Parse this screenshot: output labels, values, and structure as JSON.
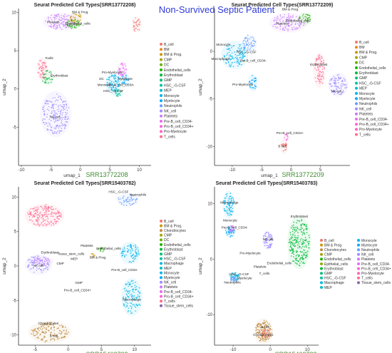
{
  "figure": {
    "suptitle": "Non-Survived Septic Patient",
    "suptitle_color": "#2f3bd6"
  },
  "colors": {
    "B_cell": "#f4766e",
    "BM": "#e58a1c",
    "BM & Prog.": "#c99800",
    "CMP": "#a3a500",
    "DC": "#6bb100",
    "Endothelial_cells": "#1eb600",
    "Erythroblast": "#00ba38",
    "GMP": "#00bf74",
    "HSC_-G-CSF": "#00c0a5",
    "MEP": "#00bfc4",
    "Monocyte": "#00b4f0",
    "Myelocyte": "#00a9ff",
    "Neutrophils": "#619cff",
    "NK_cell": "#9d8cff",
    "Platelets": "#c77cff",
    "Pre-B_cell_CD34-": "#e76bf3",
    "Pro-B_cell_CD34+": "#fa62db",
    "Pro-Myelocyte": "#ff61c3",
    "T_cells": "#ff6c91",
    "Chondrocytes": "#c08a3e",
    "Epithelial_cells": "#8fae00",
    "Macrophage": "#00b8e7",
    "Tissue_stem_cells": "#8b64a8"
  },
  "chart_data": [
    {
      "type": "scatter",
      "title": "Seurat Predicted Cell Types(SRR13772208)",
      "xlabel": "umap_1",
      "ylabel": "umap_2",
      "watermark": "SRR13772208",
      "xlim": [
        -10.5,
        12
      ],
      "ylim": [
        -10,
        10.5
      ],
      "xticks": [
        -10,
        -5,
        0,
        5,
        10
      ],
      "yticks": [
        -5,
        0,
        5,
        10
      ],
      "legend": [
        "B_cell",
        "BM",
        "BM & Prog.",
        "CMP",
        "DC",
        "Endothelial_cells",
        "Erythroblast",
        "GMP",
        "HSC_-G-CSF",
        "MEP",
        "Monocyte",
        "Myelocyte",
        "Neutrophils",
        "NK_cell",
        "Platelets",
        "Pre-B_cell_CD34-",
        "Pro-B_cell_CD34+",
        "Pro-Myelocyte",
        "T_cells"
      ],
      "clusters": [
        {
          "type": "Platelets",
          "cx": -3.2,
          "cy": 8.8,
          "rx": 2.8,
          "ry": 1.0,
          "n": 120
        },
        {
          "type": "BM & Prog.",
          "cx": -0.8,
          "cy": 9.2,
          "rx": 1.0,
          "ry": 0.7,
          "n": 30
        },
        {
          "type": "Endothelial_cells",
          "cx": -1.2,
          "cy": 8.5,
          "rx": 1.2,
          "ry": 0.6,
          "n": 35
        },
        {
          "type": "T_cells",
          "cx": -6.5,
          "cy": 2.6,
          "rx": 0.8,
          "ry": 1.3,
          "n": 50
        },
        {
          "type": "NK_cell",
          "cx": -4.2,
          "cy": -3.3,
          "rx": 2.3,
          "ry": 2.6,
          "n": 200
        },
        {
          "type": "Erythroblast",
          "cx": -5.6,
          "cy": 1.5,
          "rx": 0.9,
          "ry": 0.9,
          "n": 30
        },
        {
          "type": "B_cell",
          "cx": 9.6,
          "cy": 8.4,
          "rx": 0.7,
          "ry": 0.9,
          "n": 30
        },
        {
          "type": "Pre-B_cell_CD34-",
          "cx": 7.1,
          "cy": 2.4,
          "rx": 0.7,
          "ry": 1.0,
          "n": 40
        },
        {
          "type": "Monocyte",
          "cx": 5.6,
          "cy": 0.7,
          "rx": 1.2,
          "ry": 1.2,
          "n": 80
        },
        {
          "type": "HSC_-G-CSF",
          "cx": 6.3,
          "cy": -0.5,
          "rx": 0.8,
          "ry": 0.5,
          "n": 25
        },
        {
          "type": "Myelocyte",
          "cx": 7.6,
          "cy": 1.2,
          "rx": 0.7,
          "ry": 0.7,
          "n": 25
        }
      ],
      "labels": [
        {
          "text": "BM & Prog.",
          "x": 0.0,
          "y": 9.9
        },
        {
          "text": "Platelets",
          "x": -4.6,
          "y": 8.6
        },
        {
          "text": "Endothelial_cells",
          "x": -0.4,
          "y": 8.4
        },
        {
          "text": "Tcells",
          "x": -5.3,
          "y": 3.9
        },
        {
          "text": "Erythroblast",
          "x": -3.6,
          "y": 1.6
        },
        {
          "text": "NK cell",
          "x": -4.3,
          "y": -3.8
        },
        {
          "text": "Pro-Myelocyte",
          "x": 5.4,
          "y": 2.0
        },
        {
          "text": "Myelocyte",
          "x": 7.6,
          "y": 1.2
        },
        {
          "text": "DC",
          "x": 3.6,
          "y": 1.2
        },
        {
          "text": "Pre-B_cell_CD34-",
          "x": 6.9,
          "y": 0.4
        },
        {
          "text": "Monocyte",
          "x": 4.1,
          "y": 0.4
        },
        {
          "text": "HSC_-G-CSF",
          "x": 5.6,
          "y": -0.4
        }
      ]
    },
    {
      "type": "scatter",
      "title": "Seurat Predicted Cell Types(SRR13772209)",
      "xlabel": "umap_1",
      "ylabel": "umap_2",
      "watermark": "SRR13772209",
      "xlim": [
        -13,
        10
      ],
      "ylim": [
        -12,
        4.5
      ],
      "xticks": [
        -10,
        -5,
        0,
        5
      ],
      "yticks": [
        -10,
        -5,
        0
      ],
      "legend": [
        "B_cell",
        "BM",
        "BM & Prog.",
        "CMP",
        "DC",
        "Endothelial_cells",
        "Erythroblast",
        "GMP",
        "HSC_-G-CSF",
        "MEP",
        "Monocyte",
        "Myelocyte",
        "Neutrophils",
        "NK_cell",
        "Platelets",
        "Pre-B_cell_CD34-",
        "Pro-B_cell_CD34+",
        "Pro-Myelocyte",
        "T_cells"
      ],
      "clusters": [
        {
          "type": "Platelets",
          "cx": -0.5,
          "cy": 3.0,
          "rx": 2.8,
          "ry": 0.9,
          "n": 110
        },
        {
          "type": "Endothelial_cells",
          "cx": 2.3,
          "cy": 3.4,
          "rx": 1.0,
          "ry": 0.6,
          "n": 30
        },
        {
          "type": "Monocyte",
          "cx": -9.6,
          "cy": -0.4,
          "rx": 2.0,
          "ry": 1.3,
          "n": 110
        },
        {
          "type": "Neutrophils",
          "cx": -7.1,
          "cy": 0.8,
          "rx": 1.1,
          "ry": 0.8,
          "n": 50
        },
        {
          "type": "Myelocyte",
          "cx": -6.5,
          "cy": -3.3,
          "rx": 0.7,
          "ry": 0.8,
          "n": 30
        },
        {
          "type": "T_cells",
          "cx": 4.8,
          "cy": -2.0,
          "rx": 0.9,
          "ry": 1.6,
          "n": 80
        },
        {
          "type": "NK_cell",
          "cx": 8.0,
          "cy": -3.5,
          "rx": 1.5,
          "ry": 1.1,
          "n": 90
        },
        {
          "type": "B_cell",
          "cx": -1.2,
          "cy": -10.0,
          "rx": 0.5,
          "ry": 0.7,
          "n": 25
        },
        {
          "type": "Pro-B_cell_CD34+",
          "cx": -0.8,
          "cy": -9.0,
          "rx": 0.4,
          "ry": 0.4,
          "n": 12
        }
      ],
      "labels": [
        {
          "text": "BM & Prog.",
          "x": -0.1,
          "y": 4.3
        },
        {
          "text": "Platelets",
          "x": -1.5,
          "y": 2.8
        },
        {
          "text": "Endothelial_cells",
          "x": 1.2,
          "y": 3.1
        },
        {
          "text": "Monocyte",
          "x": -11.5,
          "y": 0.6
        },
        {
          "text": "HSC_-G-CSF",
          "x": -7.6,
          "y": -0.2
        },
        {
          "text": "Macrophage",
          "x": -12.0,
          "y": -0.9
        },
        {
          "text": "Pre-B_cell_CD34-",
          "x": -6.4,
          "y": -1.1
        },
        {
          "text": "Pro-Myelocyte",
          "x": -8.2,
          "y": -3.6
        },
        {
          "text": "Erythroblast",
          "x": 4.7,
          "y": -1.5
        },
        {
          "text": "NK cell",
          "x": 7.7,
          "y": -4.3
        },
        {
          "text": "Pro-B_cell_CD34+",
          "x": -0.2,
          "y": -8.7
        },
        {
          "text": "B cell",
          "x": -1.5,
          "y": -10.1
        }
      ]
    },
    {
      "type": "scatter",
      "title": "Seurat Predicted Cell Types(SRR15403782)",
      "xlabel": "umap_1",
      "ylabel": "umap_2",
      "watermark": "SRR15403782",
      "xlim": [
        -7.5,
        12.5
      ],
      "ylim": [
        -11.5,
        11.5
      ],
      "xticks": [
        -5,
        0,
        5,
        10
      ],
      "yticks": [
        -10,
        -5,
        0,
        5,
        10
      ],
      "legend": [
        "B_cell",
        "BM & Prog.",
        "Chondrocytes",
        "CMP",
        "DC",
        "Endothelial_cells",
        "Erythroblast",
        "GMP",
        "HSC_-G-CSF",
        "Macrophage",
        "MEP",
        "Monocyte",
        "Myelocyte",
        "NK_cell",
        "Platelets",
        "Pre-B_cell_CD34-",
        "Pro-B_cell_CD34+",
        "T_cells",
        "Tissue_stem_cells"
      ],
      "clusters": [
        {
          "type": "T_cells",
          "cx": -3.6,
          "cy": 7.3,
          "rx": 2.6,
          "ry": 1.5,
          "n": 190
        },
        {
          "type": "NK_cell",
          "cx": -4.5,
          "cy": 0.2,
          "rx": 1.8,
          "ry": 1.3,
          "n": 90
        },
        {
          "type": "Platelets",
          "cx": -4.0,
          "cy": 0.7,
          "rx": 1.5,
          "ry": 0.6,
          "n": 30
        },
        {
          "type": "Neutrophils",
          "cx": 9.0,
          "cy": 9.6,
          "rx": 1.5,
          "ry": 0.8,
          "n": 45
        },
        {
          "type": "Monocyte",
          "cx": 9.3,
          "cy": 1.9,
          "rx": 1.4,
          "ry": 1.4,
          "n": 80
        },
        {
          "type": "Macrophage",
          "cx": 9.6,
          "cy": -4.5,
          "rx": 1.4,
          "ry": 2.4,
          "n": 110
        },
        {
          "type": "Chondrocytes",
          "cx": -2.8,
          "cy": -9.6,
          "rx": 2.8,
          "ry": 1.4,
          "n": 140
        },
        {
          "type": "Endothelial_cells",
          "cx": 5.0,
          "cy": 2.4,
          "rx": 0.6,
          "ry": 0.3,
          "n": 10
        },
        {
          "type": "BM & Prog.",
          "cx": 3.8,
          "cy": 1.6,
          "rx": 0.4,
          "ry": 0.3,
          "n": 8
        }
      ],
      "labels": [
        {
          "text": "HSC_-G-CSF",
          "x": 7.6,
          "y": 10.6
        },
        {
          "text": "Neutrophils",
          "x": 10.5,
          "y": 10.2
        },
        {
          "text": "Platelets",
          "x": 2.8,
          "y": 2.8
        },
        {
          "text": "Endothelial_cells",
          "x": 6.1,
          "y": 2.4
        },
        {
          "text": "BM & Prog.",
          "x": 4.5,
          "y": 1.1
        },
        {
          "text": "Erythroblast",
          "x": -2.8,
          "y": 1.8
        },
        {
          "text": "Tissue_stem_cells",
          "x": 0.4,
          "y": 1.6
        },
        {
          "text": "MEP",
          "x": 0.9,
          "y": 0.9
        },
        {
          "text": "CMP",
          "x": -1.2,
          "y": 0.2
        },
        {
          "text": "NK cell",
          "x": -4.5,
          "y": -0.1
        },
        {
          "text": "Pre-B_cell_CD34-",
          "x": 8.5,
          "y": -0.7
        },
        {
          "text": "GMP",
          "x": 1.6,
          "y": -2.6
        },
        {
          "text": "Pro-B_cell_CD34+",
          "x": 1.4,
          "y": -3.7
        },
        {
          "text": "Macrophage",
          "x": 9.6,
          "y": -5.0
        },
        {
          "text": "Chondrocytes",
          "x": -3.0,
          "y": -8.5
        },
        {
          "text": "B cell",
          "x": -2.2,
          "y": -10.3
        }
      ]
    },
    {
      "type": "scatter",
      "title": "Seurat Predicted Cell Types(SRR15403783)",
      "xlabel": "umap_1",
      "ylabel": "umap_2",
      "watermark": "SRR15403783",
      "xlim": [
        -15,
        13
      ],
      "ylim": [
        -15.5,
        13
      ],
      "xticks": [
        -10,
        0,
        10
      ],
      "yticks": [
        -10,
        0,
        10
      ],
      "legend": [
        "B_cell",
        "BM & Prog.",
        "Chondrocytes",
        "CMP",
        "Endothelial_cells",
        "Epithelial_cells",
        "Erythroblast",
        "GMP",
        "HSC_-G-CSF",
        "Macrophage",
        "MEP",
        "Monocyte",
        "Myelocyte",
        "Neutrophils",
        "NK_cell",
        "Platelets",
        "Pre-B_cell_CD34-",
        "Pro-B_cell_CD34+",
        "Pro-Myelocyte",
        "T_cells",
        "Tissue_stem_cells"
      ],
      "clusters": [
        {
          "type": "Erythroblast",
          "cx": 7.8,
          "cy": 3.0,
          "rx": 2.8,
          "ry": 4.2,
          "n": 230
        },
        {
          "type": "Monocyte",
          "cx": -11.2,
          "cy": 9.8,
          "rx": 1.4,
          "ry": 2.2,
          "n": 80
        },
        {
          "type": "Myelocyte",
          "cx": -10.8,
          "cy": 5.0,
          "rx": 1.3,
          "ry": 1.0,
          "n": 45
        },
        {
          "type": "Pre-B_cell_CD34-",
          "cx": -10.4,
          "cy": 5.4,
          "rx": 0.8,
          "ry": 0.6,
          "n": 20
        },
        {
          "type": "NK_cell",
          "cx": -0.7,
          "cy": 3.4,
          "rx": 1.3,
          "ry": 1.5,
          "n": 70
        },
        {
          "type": "Macrophage",
          "cx": -9.5,
          "cy": -3.2,
          "rx": 1.3,
          "ry": 0.8,
          "n": 40
        },
        {
          "type": "Neutrophils",
          "cx": -9.8,
          "cy": -3.7,
          "rx": 1.0,
          "ry": 0.5,
          "n": 25
        },
        {
          "type": "Chondrocytes",
          "cx": -1.8,
          "cy": -13.0,
          "rx": 2.2,
          "ry": 2.0,
          "n": 140
        },
        {
          "type": "B_cell",
          "cx": -1.2,
          "cy": -13.4,
          "rx": 1.2,
          "ry": 0.8,
          "n": 30
        }
      ],
      "labels": [
        {
          "text": "Macrophage",
          "x": -11.0,
          "y": 10.0
        },
        {
          "text": "Monocyte",
          "x": -10.8,
          "y": 6.8
        },
        {
          "text": "Pre-B_cell_CD34-",
          "x": -9.6,
          "y": 5.5
        },
        {
          "text": "Erythroblast",
          "x": 7.8,
          "y": 7.5
        },
        {
          "text": "NK cell",
          "x": -0.6,
          "y": 3.4
        },
        {
          "text": "Pro-Myelocyte",
          "x": -5.4,
          "y": 0.9
        },
        {
          "text": "Endothelial_cells",
          "x": 2.4,
          "y": -0.9
        },
        {
          "text": "Platelets",
          "x": -2.8,
          "y": -1.6
        },
        {
          "text": "HSC_-G-CSF",
          "x": -8.4,
          "y": -2.9
        },
        {
          "text": "T_cells",
          "x": -1.6,
          "y": -2.8
        },
        {
          "text": "Myelocyte",
          "x": -6.9,
          "y": -3.6
        },
        {
          "text": "Neutrophils",
          "x": -10.2,
          "y": -4.4
        },
        {
          "text": "B cell",
          "x": -1.4,
          "y": -12.4
        },
        {
          "text": "Chondrocytes",
          "x": -1.9,
          "y": -13.8
        }
      ]
    }
  ]
}
